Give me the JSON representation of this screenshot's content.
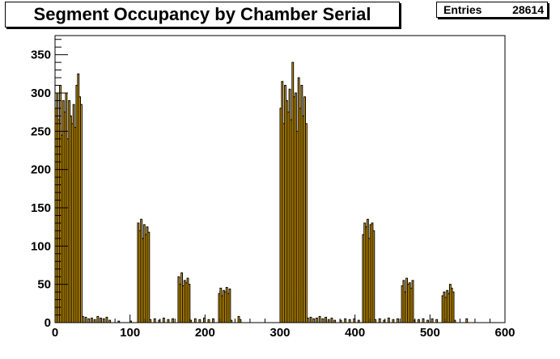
{
  "title": "Segment Occupancy by Chamber Serial",
  "stats": {
    "label": "Entries",
    "value": "28614"
  },
  "chart_data": {
    "type": "bar",
    "xlim": [
      0,
      600
    ],
    "ylim": [
      0,
      375
    ],
    "xticks": [
      0,
      100,
      200,
      300,
      400,
      500,
      600
    ],
    "yticks": [
      0,
      50,
      100,
      150,
      200,
      250,
      300,
      350
    ],
    "colors": {
      "fill": "#ffbb00",
      "line": "#000000"
    },
    "bin_width": 2,
    "bins": [
      {
        "x": 0,
        "y": 280
      },
      {
        "x": 2,
        "y": 300
      },
      {
        "x": 4,
        "y": 265
      },
      {
        "x": 6,
        "y": 310
      },
      {
        "x": 8,
        "y": 245
      },
      {
        "x": 10,
        "y": 290
      },
      {
        "x": 12,
        "y": 275
      },
      {
        "x": 14,
        "y": 300
      },
      {
        "x": 16,
        "y": 240
      },
      {
        "x": 18,
        "y": 290
      },
      {
        "x": 20,
        "y": 270
      },
      {
        "x": 22,
        "y": 260
      },
      {
        "x": 24,
        "y": 285
      },
      {
        "x": 26,
        "y": 255
      },
      {
        "x": 28,
        "y": 310
      },
      {
        "x": 30,
        "y": 325
      },
      {
        "x": 32,
        "y": 295
      },
      {
        "x": 34,
        "y": 285
      },
      {
        "x": 36,
        "y": 8
      },
      {
        "x": 40,
        "y": 7
      },
      {
        "x": 44,
        "y": 5
      },
      {
        "x": 48,
        "y": 6
      },
      {
        "x": 52,
        "y": 4
      },
      {
        "x": 56,
        "y": 8
      },
      {
        "x": 60,
        "y": 6
      },
      {
        "x": 64,
        "y": 5
      },
      {
        "x": 68,
        "y": 7
      },
      {
        "x": 72,
        "y": 3
      },
      {
        "x": 84,
        "y": 2
      },
      {
        "x": 100,
        "y": 2
      },
      {
        "x": 110,
        "y": 130
      },
      {
        "x": 112,
        "y": 120
      },
      {
        "x": 114,
        "y": 135
      },
      {
        "x": 116,
        "y": 110
      },
      {
        "x": 118,
        "y": 128
      },
      {
        "x": 120,
        "y": 115
      },
      {
        "x": 122,
        "y": 125
      },
      {
        "x": 124,
        "y": 118
      },
      {
        "x": 126,
        "y": 4
      },
      {
        "x": 132,
        "y": 5
      },
      {
        "x": 138,
        "y": 3
      },
      {
        "x": 144,
        "y": 6
      },
      {
        "x": 150,
        "y": 4
      },
      {
        "x": 156,
        "y": 5
      },
      {
        "x": 164,
        "y": 60
      },
      {
        "x": 166,
        "y": 50
      },
      {
        "x": 168,
        "y": 65
      },
      {
        "x": 170,
        "y": 48
      },
      {
        "x": 172,
        "y": 55
      },
      {
        "x": 174,
        "y": 52
      },
      {
        "x": 176,
        "y": 58
      },
      {
        "x": 178,
        "y": 50
      },
      {
        "x": 180,
        "y": 3
      },
      {
        "x": 186,
        "y": 5
      },
      {
        "x": 192,
        "y": 4
      },
      {
        "x": 198,
        "y": 6
      },
      {
        "x": 204,
        "y": 4
      },
      {
        "x": 210,
        "y": 5
      },
      {
        "x": 218,
        "y": 38
      },
      {
        "x": 220,
        "y": 45
      },
      {
        "x": 222,
        "y": 35
      },
      {
        "x": 224,
        "y": 42
      },
      {
        "x": 226,
        "y": 40
      },
      {
        "x": 228,
        "y": 46
      },
      {
        "x": 230,
        "y": 38
      },
      {
        "x": 232,
        "y": 44
      },
      {
        "x": 234,
        "y": 3
      },
      {
        "x": 244,
        "y": 8
      },
      {
        "x": 246,
        "y": 4
      },
      {
        "x": 300,
        "y": 280
      },
      {
        "x": 302,
        "y": 315
      },
      {
        "x": 304,
        "y": 260
      },
      {
        "x": 306,
        "y": 310
      },
      {
        "x": 308,
        "y": 290
      },
      {
        "x": 310,
        "y": 275
      },
      {
        "x": 312,
        "y": 305
      },
      {
        "x": 314,
        "y": 265
      },
      {
        "x": 316,
        "y": 340
      },
      {
        "x": 318,
        "y": 295
      },
      {
        "x": 320,
        "y": 300
      },
      {
        "x": 322,
        "y": 250
      },
      {
        "x": 324,
        "y": 320
      },
      {
        "x": 326,
        "y": 280
      },
      {
        "x": 328,
        "y": 310
      },
      {
        "x": 330,
        "y": 270
      },
      {
        "x": 332,
        "y": 295
      },
      {
        "x": 334,
        "y": 260
      },
      {
        "x": 336,
        "y": 6
      },
      {
        "x": 340,
        "y": 7
      },
      {
        "x": 344,
        "y": 5
      },
      {
        "x": 348,
        "y": 6
      },
      {
        "x": 352,
        "y": 8
      },
      {
        "x": 356,
        "y": 5
      },
      {
        "x": 360,
        "y": 7
      },
      {
        "x": 364,
        "y": 4
      },
      {
        "x": 368,
        "y": 6
      },
      {
        "x": 372,
        "y": 3
      },
      {
        "x": 380,
        "y": 3
      },
      {
        "x": 386,
        "y": 5
      },
      {
        "x": 392,
        "y": 4
      },
      {
        "x": 398,
        "y": 5
      },
      {
        "x": 404,
        "y": 3
      },
      {
        "x": 410,
        "y": 115
      },
      {
        "x": 412,
        "y": 130
      },
      {
        "x": 414,
        "y": 125
      },
      {
        "x": 416,
        "y": 135
      },
      {
        "x": 418,
        "y": 110
      },
      {
        "x": 420,
        "y": 128
      },
      {
        "x": 422,
        "y": 130
      },
      {
        "x": 424,
        "y": 120
      },
      {
        "x": 426,
        "y": 4
      },
      {
        "x": 432,
        "y": 5
      },
      {
        "x": 438,
        "y": 3
      },
      {
        "x": 444,
        "y": 6
      },
      {
        "x": 450,
        "y": 4
      },
      {
        "x": 456,
        "y": 5
      },
      {
        "x": 462,
        "y": 48
      },
      {
        "x": 464,
        "y": 55
      },
      {
        "x": 466,
        "y": 40
      },
      {
        "x": 468,
        "y": 58
      },
      {
        "x": 470,
        "y": 50
      },
      {
        "x": 472,
        "y": 52
      },
      {
        "x": 474,
        "y": 45
      },
      {
        "x": 476,
        "y": 55
      },
      {
        "x": 478,
        "y": 3
      },
      {
        "x": 484,
        "y": 4
      },
      {
        "x": 490,
        "y": 5
      },
      {
        "x": 496,
        "y": 3
      },
      {
        "x": 502,
        "y": 5
      },
      {
        "x": 508,
        "y": 4
      },
      {
        "x": 516,
        "y": 35
      },
      {
        "x": 518,
        "y": 40
      },
      {
        "x": 520,
        "y": 33
      },
      {
        "x": 522,
        "y": 42
      },
      {
        "x": 524,
        "y": 38
      },
      {
        "x": 526,
        "y": 50
      },
      {
        "x": 528,
        "y": 45
      },
      {
        "x": 530,
        "y": 40
      },
      {
        "x": 532,
        "y": 3
      },
      {
        "x": 548,
        "y": 5
      }
    ]
  }
}
